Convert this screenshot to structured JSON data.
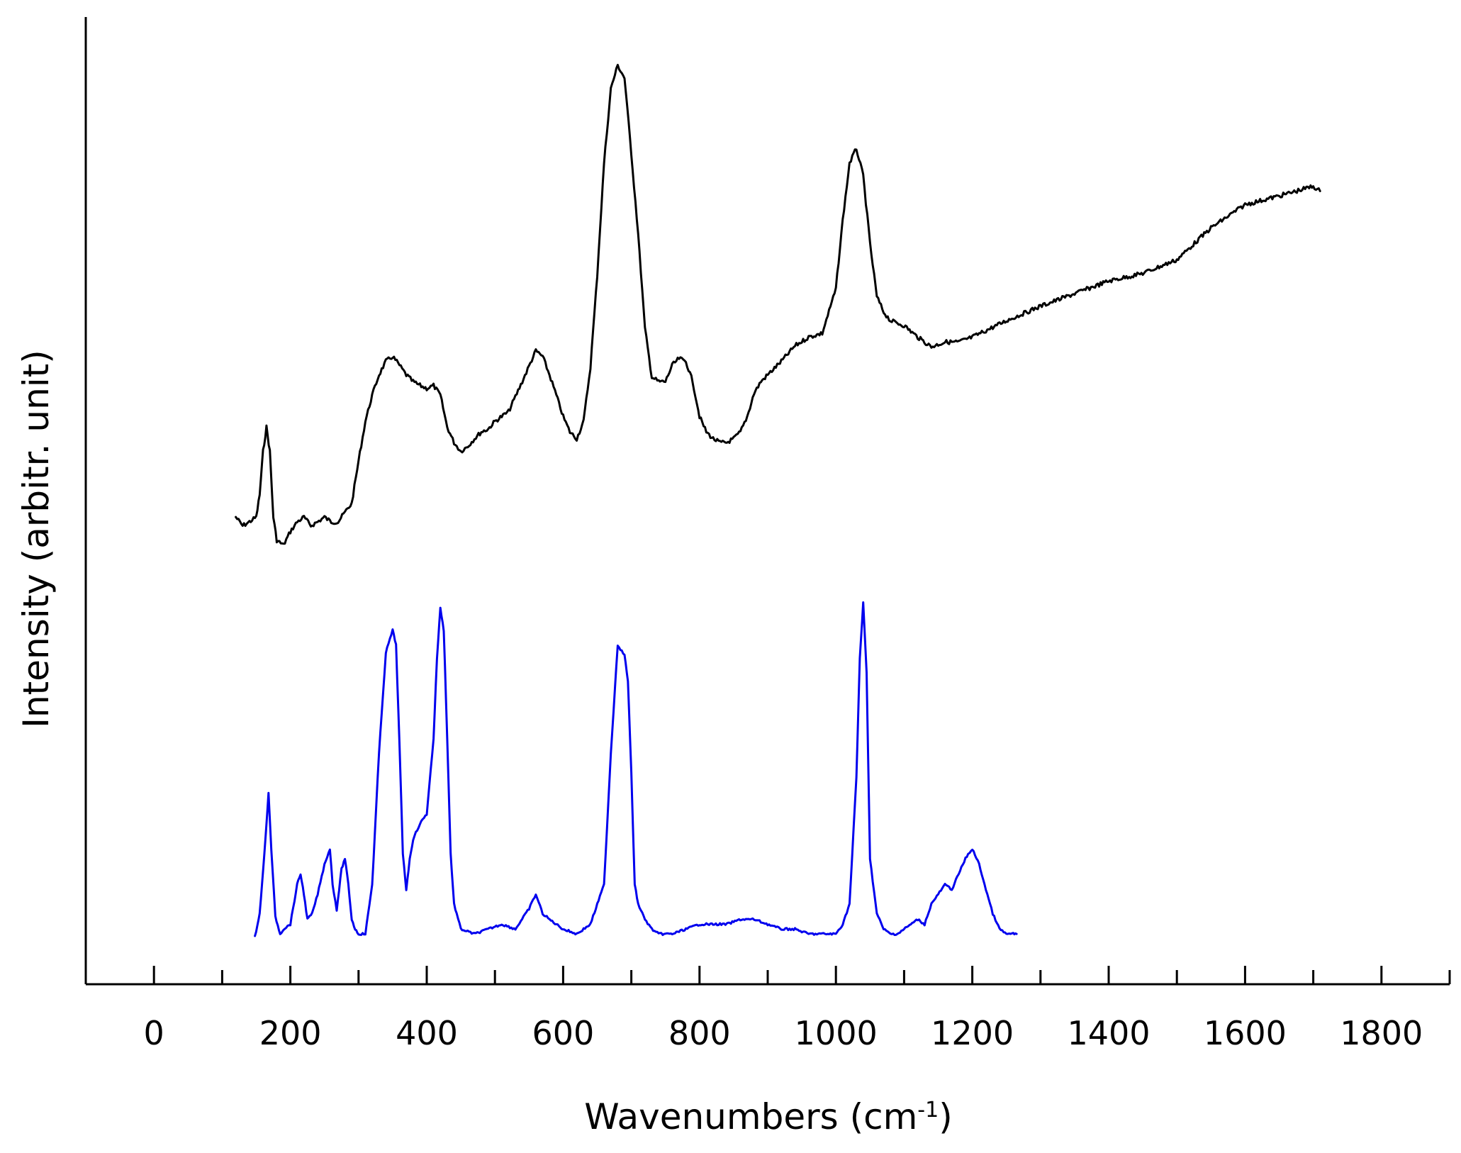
{
  "chart_data": {
    "type": "line",
    "title": "",
    "xlabel_main": "Wavenumbers (cm",
    "xlabel_sup": "-1",
    "xlabel_end": ")",
    "ylabel": "Intensity (arbitr. unit)",
    "xlim": [
      -100,
      1900
    ],
    "ylim": [
      0,
      100
    ],
    "xticks": [
      0,
      200,
      400,
      600,
      800,
      1000,
      1200,
      1400,
      1600,
      1800
    ],
    "xtick_labels": [
      "0",
      "200",
      "400",
      "600",
      "800",
      "1000",
      "1200",
      "1400",
      "1600",
      "1800"
    ],
    "grid": false,
    "legend": "none",
    "series": [
      {
        "color": "#000000",
        "x": [
          120,
          130,
          140,
          150,
          155,
          160,
          165,
          170,
          175,
          180,
          190,
          200,
          210,
          220,
          230,
          240,
          250,
          260,
          270,
          280,
          290,
          300,
          310,
          320,
          330,
          340,
          350,
          360,
          370,
          380,
          390,
          400,
          410,
          420,
          430,
          440,
          450,
          460,
          470,
          480,
          490,
          500,
          520,
          540,
          560,
          570,
          580,
          590,
          600,
          610,
          620,
          630,
          640,
          650,
          660,
          670,
          680,
          690,
          700,
          710,
          720,
          730,
          740,
          750,
          760,
          770,
          780,
          790,
          800,
          810,
          820,
          830,
          840,
          850,
          860,
          870,
          880,
          890,
          900,
          920,
          940,
          960,
          980,
          1000,
          1010,
          1020,
          1030,
          1040,
          1050,
          1060,
          1070,
          1080,
          1100,
          1120,
          1140,
          1160,
          1180,
          1200,
          1250,
          1300,
          1350,
          1400,
          1450,
          1500,
          1550,
          1600,
          1650,
          1700,
          1710
        ],
        "y": [
          48.3,
          47.4,
          47.8,
          48.3,
          50.6,
          55.1,
          57.6,
          55.1,
          48.3,
          45.9,
          45.4,
          46.8,
          47.8,
          48.3,
          47.4,
          47.8,
          48.3,
          47.8,
          47.8,
          48.8,
          49.7,
          54.1,
          58.2,
          60.9,
          63.0,
          64.4,
          64.9,
          64.0,
          63.0,
          62.3,
          61.9,
          61.6,
          61.9,
          60.9,
          57.6,
          56.0,
          55.1,
          55.6,
          56.4,
          57.1,
          57.4,
          58.2,
          59.2,
          62.3,
          65.5,
          64.9,
          63.0,
          60.9,
          58.7,
          57.1,
          56.4,
          58.2,
          63.8,
          73.3,
          84.9,
          92.6,
          95.0,
          93.7,
          85.9,
          77.6,
          67.8,
          62.8,
          62.3,
          62.3,
          64.0,
          64.7,
          64.4,
          62.3,
          58.7,
          57.1,
          56.4,
          56.0,
          56.0,
          56.4,
          57.1,
          58.7,
          61.1,
          62.3,
          63.0,
          64.4,
          66.0,
          66.9,
          67.3,
          71.9,
          79.0,
          84.9,
          86.4,
          83.6,
          76.6,
          71.1,
          69.5,
          68.6,
          68.1,
          66.9,
          65.9,
          66.4,
          66.4,
          66.9,
          68.6,
          70.1,
          71.4,
          72.7,
          73.5,
          74.9,
          78.2,
          80.6,
          81.5,
          82.5,
          82.0
        ]
      },
      {
        "color": "#0000ee",
        "x": [
          148,
          155,
          162,
          168,
          172,
          178,
          185,
          190,
          200,
          210,
          215,
          220,
          225,
          232,
          240,
          250,
          258,
          262,
          268,
          275,
          280,
          285,
          290,
          295,
          300,
          310,
          320,
          330,
          340,
          350,
          355,
          360,
          365,
          370,
          375,
          380,
          390,
          400,
          410,
          415,
          420,
          425,
          430,
          435,
          440,
          450,
          470,
          490,
          510,
          530,
          550,
          560,
          570,
          580,
          600,
          620,
          640,
          660,
          670,
          680,
          690,
          695,
          700,
          705,
          710,
          720,
          730,
          740,
          760,
          780,
          800,
          820,
          840,
          860,
          880,
          900,
          920,
          940,
          960,
          980,
          1000,
          1010,
          1020,
          1030,
          1035,
          1040,
          1045,
          1050,
          1060,
          1070,
          1080,
          1090,
          1100,
          1110,
          1120,
          1130,
          1140,
          1150,
          1160,
          1170,
          1180,
          1190,
          1200,
          1210,
          1220,
          1230,
          1240,
          1250,
          1260,
          1265
        ],
        "y": [
          4.9,
          7.3,
          13.5,
          19.8,
          14.0,
          7.0,
          5.2,
          5.7,
          6.2,
          10.3,
          11.4,
          9.3,
          6.7,
          7.3,
          9.3,
          12.4,
          14.0,
          10.3,
          7.7,
          11.9,
          13.0,
          10.3,
          6.7,
          5.7,
          5.2,
          5.2,
          10.3,
          23.9,
          34.3,
          36.6,
          35.1,
          24.9,
          13.5,
          9.8,
          12.9,
          15.0,
          16.6,
          17.6,
          25.4,
          33.7,
          38.9,
          36.6,
          25.4,
          13.5,
          8.3,
          5.7,
          5.2,
          5.7,
          6.2,
          5.7,
          7.8,
          9.3,
          7.3,
          6.7,
          5.7,
          5.2,
          6.2,
          10.3,
          23.9,
          35.1,
          34.0,
          31.4,
          21.8,
          10.3,
          8.3,
          6.7,
          5.7,
          5.2,
          5.2,
          5.7,
          6.2,
          6.2,
          6.2,
          6.7,
          6.7,
          6.2,
          5.7,
          5.7,
          5.2,
          5.2,
          5.2,
          6.2,
          8.3,
          21.3,
          33.7,
          39.4,
          32.2,
          13.0,
          7.3,
          5.7,
          5.2,
          5.2,
          5.7,
          6.2,
          6.7,
          6.2,
          8.3,
          9.3,
          10.3,
          9.8,
          11.4,
          13.0,
          14.0,
          12.4,
          9.8,
          7.3,
          5.7,
          5.2,
          5.2,
          5.2
        ]
      }
    ]
  }
}
